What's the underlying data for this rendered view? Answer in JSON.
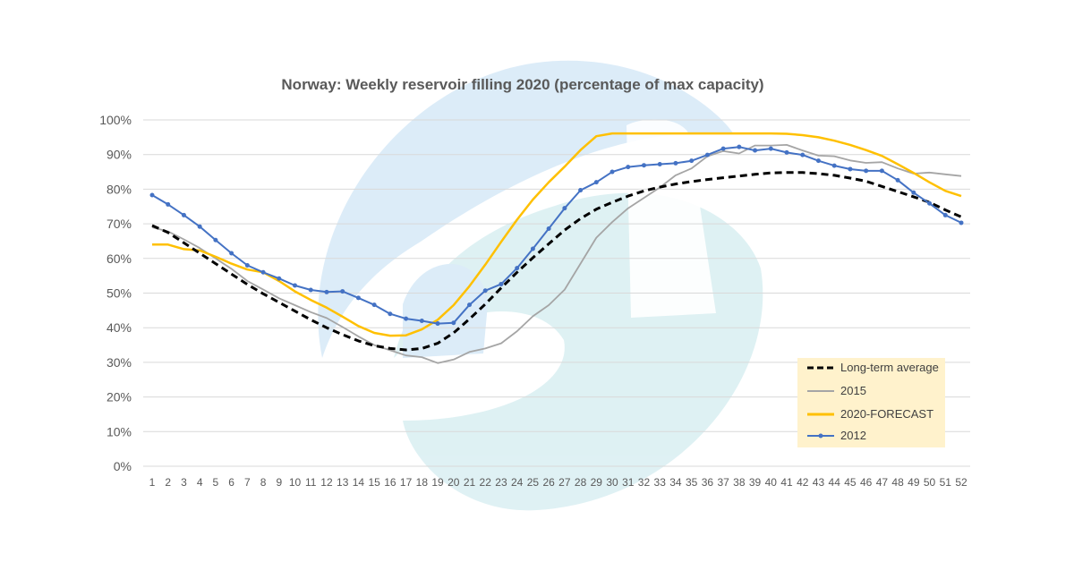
{
  "chart_data": {
    "type": "line",
    "title": "Norway: Weekly reservoir filling 2020 (percentage of max capacity)",
    "xlabel": "",
    "ylabel": "",
    "x": [
      1,
      2,
      3,
      4,
      5,
      6,
      7,
      8,
      9,
      10,
      11,
      12,
      13,
      14,
      15,
      16,
      17,
      18,
      19,
      20,
      21,
      22,
      23,
      24,
      25,
      26,
      27,
      28,
      29,
      30,
      31,
      32,
      33,
      34,
      35,
      36,
      37,
      38,
      39,
      40,
      41,
      42,
      43,
      44,
      45,
      46,
      47,
      48,
      49,
      50,
      51,
      52
    ],
    "ylim": [
      0,
      100
    ],
    "yticks": [
      "0%",
      "10%",
      "20%",
      "30%",
      "40%",
      "50%",
      "60%",
      "70%",
      "80%",
      "90%",
      "100%"
    ],
    "grid": true,
    "legend_position": "bottom-right",
    "series": [
      {
        "name": "Long-term average",
        "color": "#000000",
        "style": "dashed",
        "values": [
          69.5,
          67.5,
          64.5,
          61.5,
          58.5,
          55.5,
          52.5,
          49.8,
          47.3,
          44.8,
          42.3,
          40.0,
          38.0,
          36.2,
          34.8,
          34.0,
          33.6,
          34.0,
          35.5,
          38.5,
          42.5,
          46.8,
          51.5,
          56.0,
          60.2,
          64.2,
          68.2,
          71.5,
          74.2,
          76.2,
          78.0,
          79.5,
          80.6,
          81.5,
          82.2,
          82.8,
          83.3,
          83.8,
          84.3,
          84.7,
          84.8,
          84.8,
          84.5,
          84.0,
          83.2,
          82.3,
          80.8,
          79.3,
          77.8,
          76.2,
          74.0,
          72.0
        ]
      },
      {
        "name": "2015",
        "color": "#a5a5a5",
        "style": "solid",
        "values": [
          69,
          67.8,
          65.5,
          63,
          60,
          57,
          53.5,
          51,
          48.5,
          46.5,
          44.5,
          42.8,
          40.2,
          37.5,
          35,
          33.5,
          32,
          31.5,
          29.8,
          30.8,
          33,
          34,
          35.5,
          39,
          43.3,
          46.5,
          51,
          58.5,
          66,
          70.5,
          74.5,
          77.5,
          80.5,
          84,
          86,
          89.5,
          91,
          90.3,
          92.6,
          92.6,
          92.8,
          91.2,
          89.7,
          89.5,
          88.3,
          87.6,
          87.8,
          86,
          84.5,
          84.8,
          84.3,
          83.8
        ]
      },
      {
        "name": "2020-FORECAST",
        "color": "#ffc000",
        "style": "solid",
        "values": [
          64,
          64,
          62.7,
          62.3,
          60.5,
          58.5,
          56.8,
          56,
          53.5,
          50.5,
          48,
          45.8,
          43.2,
          40.5,
          38.5,
          37.7,
          37.8,
          39.5,
          42.3,
          46.5,
          52,
          58.2,
          64.8,
          71.2,
          77,
          82,
          86.5,
          91.3,
          95.3,
          96.1,
          96.1,
          96.1,
          96.1,
          96.1,
          96.1,
          96.1,
          96.1,
          96.1,
          96.1,
          96.1,
          96,
          95.6,
          95,
          94,
          92.8,
          91.3,
          89.6,
          87.2,
          84.7,
          82,
          79.5,
          78
        ]
      },
      {
        "name": "2012",
        "color": "#4472c4",
        "style": "solid-markers",
        "values": [
          78.3,
          75.6,
          72.5,
          69.2,
          65.3,
          61.5,
          58.0,
          56.0,
          54.2,
          52.2,
          50.9,
          50.3,
          50.5,
          48.6,
          46.6,
          44.0,
          42.6,
          42.0,
          41.2,
          41.4,
          46.6,
          50.7,
          52.6,
          57.2,
          62.8,
          68.6,
          74.5,
          79.7,
          82.0,
          85.0,
          86.4,
          86.9,
          87.2,
          87.5,
          88.2,
          89.9,
          91.7,
          92.2,
          91.2,
          91.7,
          90.6,
          89.9,
          88.2,
          86.8,
          85.8,
          85.3,
          85.3,
          82.6,
          79.0,
          75.9,
          72.5,
          70.3
        ]
      }
    ]
  },
  "colors": {
    "legend_bg": "#fff2cc",
    "grid": "#d9d9d9",
    "watermark_blue": "#d6e9f7",
    "watermark_teal": "#d4efec"
  }
}
